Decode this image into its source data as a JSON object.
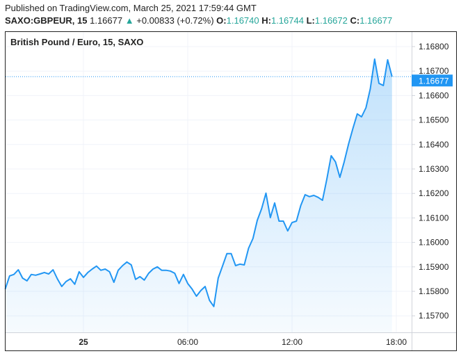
{
  "header": {
    "published": "Published on TradingView.com, March 25, 2021 17:59:44 GMT",
    "symbol": "SAXO:GBPEUR, 15",
    "last": "1.16677",
    "change": "+0.00833 (+0.72%)",
    "o_label": "O:",
    "o": "1.16740",
    "h_label": "H:",
    "h": "1.16744",
    "l_label": "L:",
    "l": "1.16672",
    "c_label": "C:",
    "c": "1.16677"
  },
  "colors": {
    "line": "#2196f3",
    "up": "#26a69a",
    "grid": "#f0f3fa"
  },
  "chart_data": {
    "type": "area",
    "title": "British Pound / Euro, 15, SAXO",
    "x_start": "2021-03-24 19:30",
    "interval_minutes": 15,
    "x_ticks": [
      {
        "label": "25",
        "time": "2021-03-25 00:00"
      },
      {
        "label": "06:00",
        "time": "2021-03-25 06:00"
      },
      {
        "label": "12:00",
        "time": "2021-03-25 12:00"
      },
      {
        "label": "18:00",
        "time": "2021-03-25 18:00"
      }
    ],
    "y_ticks": [
      "1.15700",
      "1.15800",
      "1.15900",
      "1.16000",
      "1.16100",
      "1.16200",
      "1.16300",
      "1.16400",
      "1.16500",
      "1.16600",
      "1.16700",
      "1.16800"
    ],
    "ylim": [
      1.1563,
      1.1686
    ],
    "last_price_label": "1.16677",
    "grid": true,
    "values": [
      1.15809,
      1.15863,
      1.15869,
      1.15888,
      1.15854,
      1.15843,
      1.15869,
      1.15866,
      1.15871,
      1.15877,
      1.15871,
      1.15888,
      1.15851,
      1.1582,
      1.1584,
      1.15851,
      1.15829,
      1.1588,
      1.15857,
      1.15877,
      1.15891,
      1.15903,
      1.15886,
      1.15891,
      1.1588,
      1.15837,
      1.15886,
      1.15905,
      1.1592,
      1.15908,
      1.15849,
      1.1586,
      1.15846,
      1.15874,
      1.15891,
      1.159,
      1.15886,
      1.15886,
      1.15883,
      1.15874,
      1.15832,
      1.15869,
      1.15832,
      1.15809,
      1.1578,
      1.15803,
      1.1582,
      1.15763,
      1.15738,
      1.15854,
      1.15903,
      1.15954,
      1.15954,
      1.15905,
      1.15911,
      1.15908,
      1.15976,
      1.16016,
      1.1609,
      1.16138,
      1.16201,
      1.16101,
      1.16161,
      1.16087,
      1.16087,
      1.16047,
      1.16081,
      1.16087,
      1.1615,
      1.16195,
      1.16187,
      1.16192,
      1.16184,
      1.16172,
      1.16258,
      1.16354,
      1.16329,
      1.16266,
      1.16329,
      1.16402,
      1.16465,
      1.16525,
      1.16513,
      1.1655,
      1.16627,
      1.16749,
      1.1665,
      1.16641,
      1.16746,
      1.16677
    ]
  }
}
